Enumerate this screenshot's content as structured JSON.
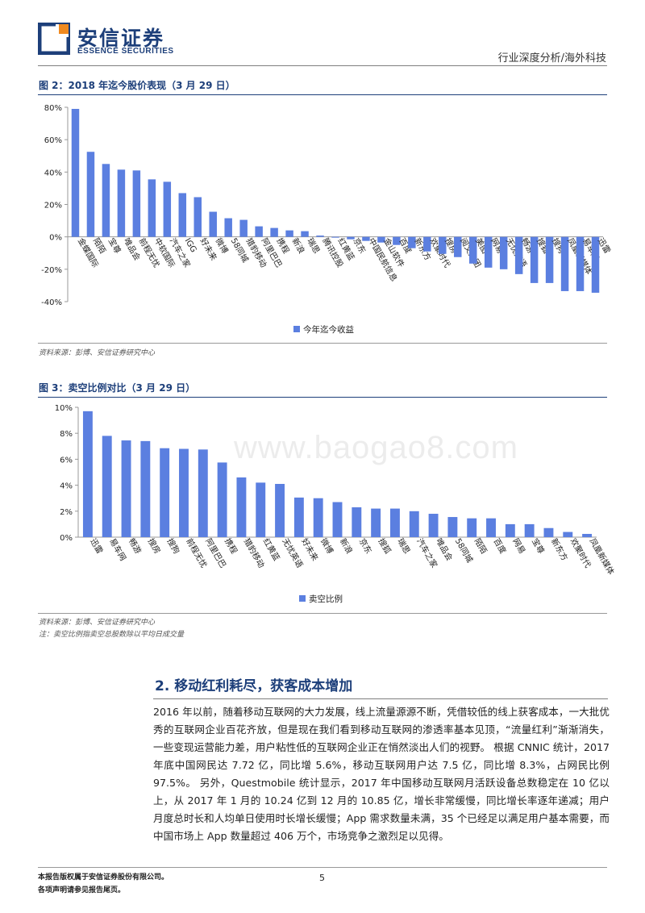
{
  "header": {
    "company_cn": "安信证券",
    "company_en": "ESSENCE SECURITIES",
    "tag": "行业深度分析/海外科技"
  },
  "watermark": "www.baogao8.com",
  "figure2": {
    "title": "图 2：2018 年迄今股价表现（3 月 29 日）",
    "source": "资料来源：彭博、安信证券研究中心"
  },
  "figure3": {
    "title": "图 3：卖空比例对比（3 月 29 日）",
    "source": "资料来源：彭博、安信证券研究中心",
    "note": "注：卖空比例指卖空总股数除以平均日成交量"
  },
  "section": {
    "title": "2. 移动红利耗尽，获客成本增加",
    "paragraph": "2016 年以前，随着移动互联网的大力发展，线上流量源源不断，凭借较低的线上获客成本，一大批优秀的互联网企业百花齐放，但是现在我们看到移动互联网的渗透率基本见顶，“流量红利”渐渐消失，一些变现运营能力差，用户粘性低的互联网企业正在悄然淡出人们的视野。 根据 CNNIC 统计，2017 年底中国网民达 7.72 亿，同比增 5.6%，移动互联网用户达 7.5 亿，同比增 8.3%，占网民比例 97.5%。 另外，Questmobile 统计显示，2017 年中国移动互联网月活跃设备总数稳定在 10 亿以上，从 2017 年 1 月的 10.24 亿到 12 月的 10.85 亿，增长非常缓慢，同比增长率逐年递减；用户月度总时长和人均单日使用时长增长缓慢；App 需求数量未满，35 个已经足以满足用户基本需要，而中国市场上 App 数量超过 406 万个，市场竞争之激烈足以见得。"
  },
  "footer": {
    "line1": "本报告版权属于安信证券股份有限公司。",
    "line2": "各项声明请参见报告尾页。",
    "page": "5"
  },
  "colors": {
    "bar": "#5b7fe0",
    "brand": "#1d3f7a",
    "logo_orange": "#f08a1f"
  },
  "chart_data": [
    {
      "type": "bar",
      "title": "",
      "xlabel": "",
      "ylabel": "",
      "ylim": [
        -40,
        80
      ],
      "yticks": [
        "80%",
        "60%",
        "40%",
        "20%",
        "0%",
        "-20%",
        "-40%"
      ],
      "legend": "bottom",
      "categories": [
        "金蝶国际",
        "陌陌",
        "宝尊",
        "唯品会",
        "前程无忧",
        "中软国际",
        "汽车之家",
        "IGG",
        "好未来",
        "微博",
        "58同城",
        "猎豹移动",
        "阿里巴巴",
        "携程",
        "新浪",
        "瑞思",
        "腾讯控股",
        "红黄蓝",
        "京东",
        "中国民航信息",
        "金山软件",
        "百度",
        "新东方",
        "欢聚时代",
        "搜房",
        "阅文集团",
        "美图",
        "网易",
        "无忧英语",
        "畅游",
        "搜狐",
        "搜狗",
        "凤凰新媒体",
        "易车网",
        "迅雷"
      ],
      "series": [
        {
          "name": "今年迄今收益",
          "values": [
            79,
            52.5,
            45,
            41.5,
            41,
            35.5,
            34,
            27,
            24.5,
            15.5,
            11.5,
            10.5,
            6.5,
            5.5,
            4,
            3.5,
            0.8,
            -0.5,
            -1.5,
            -2.5,
            -3.5,
            -5,
            -7,
            -9,
            -10.5,
            -12.5,
            -16.5,
            -19,
            -20,
            -23,
            -28.5,
            -28.5,
            -33.5,
            -33.5,
            -34.5
          ]
        }
      ]
    },
    {
      "type": "bar",
      "title": "",
      "xlabel": "",
      "ylabel": "",
      "ylim": [
        0,
        10
      ],
      "yticks": [
        "10%",
        "8%",
        "6%",
        "4%",
        "2%",
        "0%"
      ],
      "legend": "bottom",
      "categories": [
        "迅雷",
        "易车网",
        "畅游",
        "搜房",
        "搜狗",
        "前程无忧",
        "阿里巴巴",
        "携程",
        "猎豹移动",
        "红黄蓝",
        "无忧英语",
        "好未来",
        "微博",
        "新浪",
        "京东",
        "搜狐",
        "瑞思",
        "汽车之家",
        "唯品会",
        "58同城",
        "陌陌",
        "百度",
        "网易",
        "宝尊",
        "新东方",
        "欢聚时代",
        "凤凰新媒体"
      ],
      "series": [
        {
          "name": "卖空比例",
          "values": [
            9.7,
            7.8,
            7.45,
            7.4,
            6.85,
            6.8,
            6.75,
            5.75,
            4.6,
            4.2,
            4.1,
            3.05,
            3.0,
            2.7,
            2.3,
            2.2,
            2.2,
            2.0,
            1.8,
            1.55,
            1.45,
            1.45,
            1.0,
            1.0,
            0.7,
            0.4,
            0.25
          ]
        }
      ]
    }
  ]
}
